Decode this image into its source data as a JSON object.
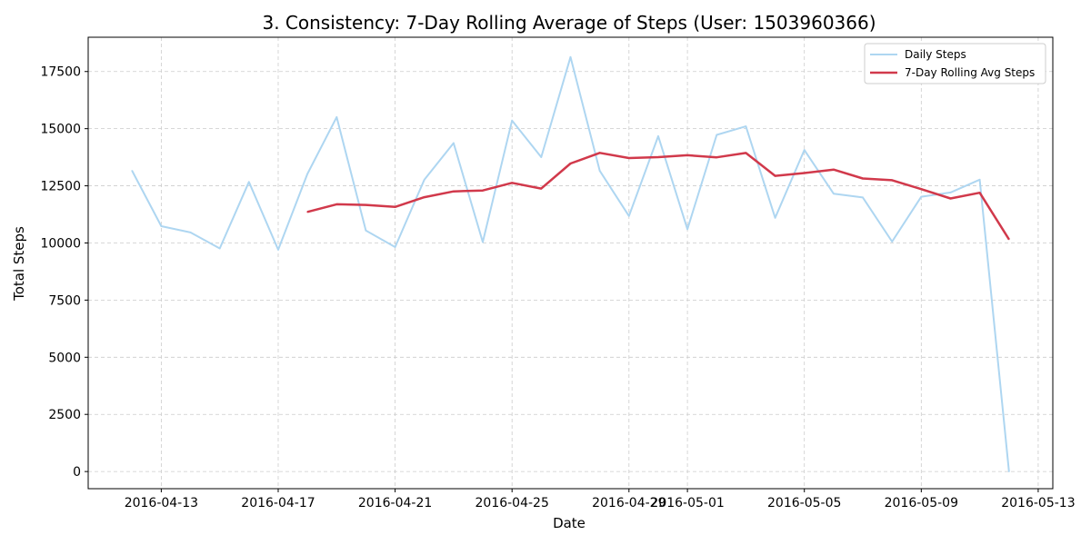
{
  "chart_data": {
    "type": "line",
    "title": "3. Consistency: 7-Day Rolling Average of Steps (User: 1503960366)",
    "xlabel": "Date",
    "ylabel": "Total Steps",
    "x": [
      "2016-04-12",
      "2016-04-13",
      "2016-04-14",
      "2016-04-15",
      "2016-04-16",
      "2016-04-17",
      "2016-04-18",
      "2016-04-19",
      "2016-04-20",
      "2016-04-21",
      "2016-04-22",
      "2016-04-23",
      "2016-04-24",
      "2016-04-25",
      "2016-04-26",
      "2016-04-27",
      "2016-04-28",
      "2016-04-29",
      "2016-04-30",
      "2016-05-01",
      "2016-05-02",
      "2016-05-03",
      "2016-05-04",
      "2016-05-05",
      "2016-05-06",
      "2016-05-07",
      "2016-05-08",
      "2016-05-09",
      "2016-05-10",
      "2016-05-11",
      "2016-05-12"
    ],
    "series": [
      {
        "name": "Daily Steps",
        "color": "#aed6f1",
        "values": [
          13162,
          10735,
          10460,
          9762,
          12669,
          9705,
          13019,
          15506,
          10544,
          9819,
          12764,
          14371,
          10039,
          15355,
          13755,
          18134,
          13154,
          11181,
          14673,
          10602,
          14727,
          15103,
          11100,
          14070,
          12159,
          11992,
          10060,
          12022,
          12207,
          12770,
          0
        ]
      },
      {
        "name": "7-Day Rolling Avg Steps",
        "color": "#d1394b",
        "values": [
          null,
          null,
          null,
          null,
          null,
          null,
          11359,
          11694,
          11666,
          11575,
          12004,
          12255,
          12295,
          12628,
          12378,
          13477,
          13941,
          13714,
          13753,
          13839,
          13747,
          13939,
          12937,
          13061,
          13209,
          12822,
          12747,
          12354,
          11948,
          12197,
          10158
        ]
      }
    ],
    "ylim": [
      -750,
      19000
    ],
    "yticks": [
      0,
      2500,
      5000,
      7500,
      10000,
      12500,
      15000,
      17500
    ],
    "xlim": [
      "2016-04-10T12:00",
      "2016-05-13T12:00"
    ],
    "xticks": [
      "2016-04-13",
      "2016-04-17",
      "2016-04-21",
      "2016-04-25",
      "2016-04-29",
      "2016-05-01",
      "2016-05-05",
      "2016-05-09",
      "2016-05-13"
    ],
    "grid": true,
    "legend_position": "top-right"
  }
}
